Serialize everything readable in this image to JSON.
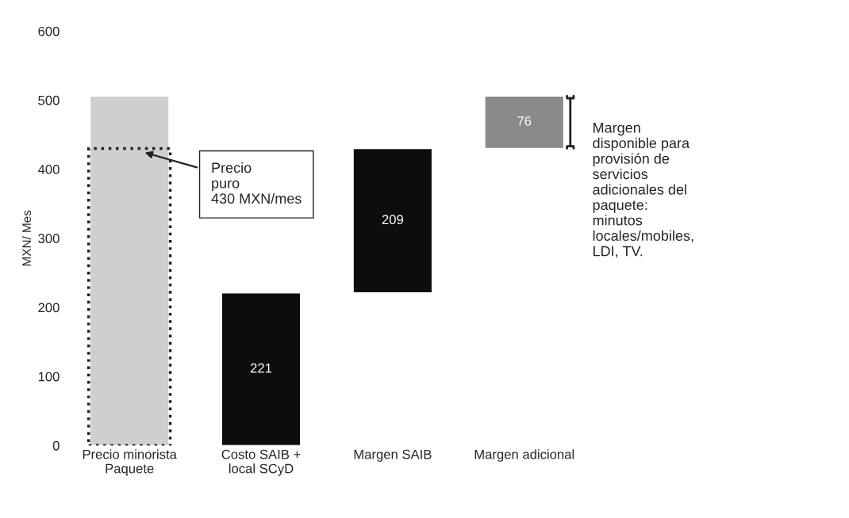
{
  "chart_data": {
    "type": "bar",
    "ylabel": "MXN/ Mes",
    "categories": [
      "Precio minorista\nPaquete",
      "Costo SAIB +\nlocal SCyD",
      "Margen SAIB",
      "Margen adicional"
    ],
    "series": [
      {
        "values": [
          506,
          221,
          209,
          76
        ],
        "base": [
          0,
          0,
          221,
          430
        ],
        "colors": [
          "#cfcfcf",
          "#0d0d0d",
          "#0d0d0d",
          "#8a8a8a"
        ],
        "value_labels": [
          null,
          "221",
          "209",
          "76"
        ]
      },
      {
        "values": [
          430,
          null,
          null,
          null
        ],
        "color": "#222222",
        "line_style": "dotted"
      }
    ],
    "ylim": [
      0,
      600
    ],
    "yticks": [
      0,
      100,
      200,
      300,
      400,
      500,
      600
    ],
    "grid": false,
    "legend": false,
    "annotations": [
      "Precio\npuro\n430 MXN/mes",
      "Margen\ndisponible para\nprovisión de\nservicios\nadicionales del\npaquete:\nminutos\nlocales/mobiles,\nLDI, TV."
    ]
  }
}
